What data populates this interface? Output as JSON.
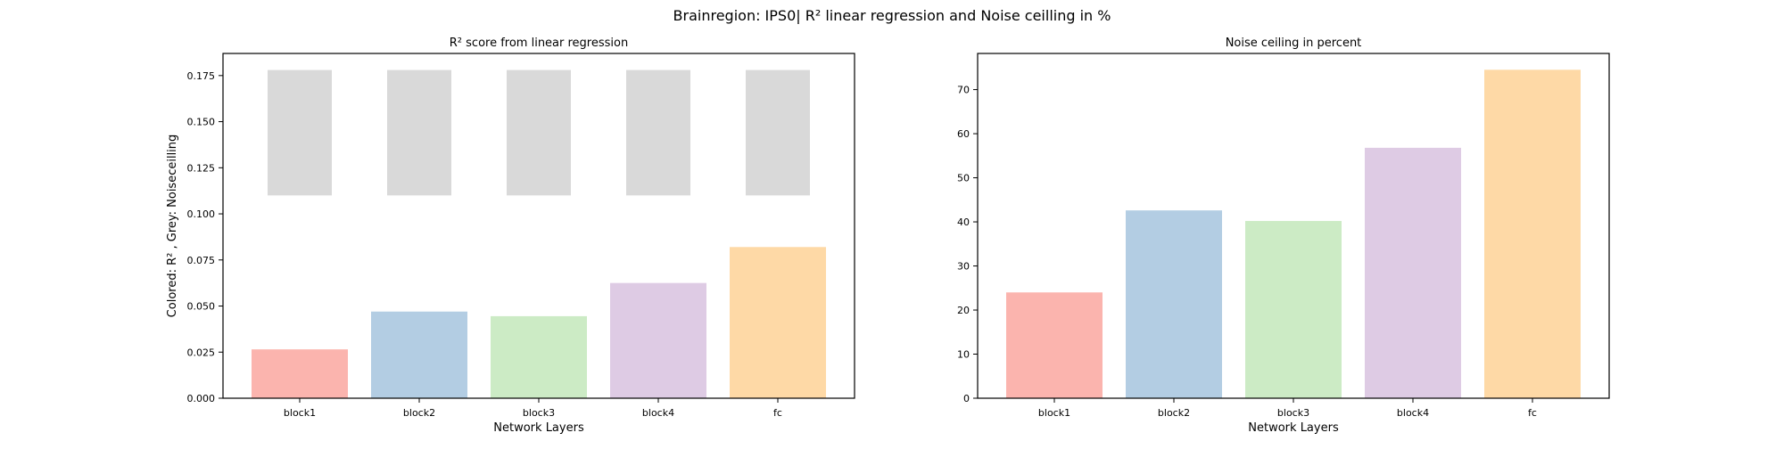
{
  "figure": {
    "title": "Brainregion: IPS0| R² linear regression and Noise ceilling in %"
  },
  "chart_data": [
    {
      "type": "bar",
      "title": "R² score from linear regression",
      "xlabel": "Network Layers",
      "ylabel": "Colored: R² , Grey: Noiseceilling",
      "categories": [
        "block1",
        "block2",
        "block3",
        "block4",
        "fc"
      ],
      "series": [
        {
          "values": [
            0.0265,
            0.047,
            0.0445,
            0.0625,
            0.082
          ]
        }
      ],
      "noise_ceiling_range": [
        [
          0.11,
          0.178
        ],
        [
          0.11,
          0.178
        ],
        [
          0.11,
          0.178
        ],
        [
          0.11,
          0.178
        ],
        [
          0.11,
          0.178
        ]
      ],
      "bar_colors": [
        "#fbb4ae",
        "#b3cde3",
        "#ccebc5",
        "#decbe4",
        "#fed9a6"
      ],
      "noise_ceiling_color": "#d9d9d9",
      "ylim": [
        0,
        0.187
      ],
      "yticks": [
        0.0,
        0.025,
        0.05,
        0.075,
        0.1,
        0.125,
        0.15,
        0.175
      ],
      "ytick_labels": [
        "0.000",
        "0.025",
        "0.050",
        "0.075",
        "0.100",
        "0.125",
        "0.150",
        "0.175"
      ],
      "grid": false,
      "legend": "none"
    },
    {
      "type": "bar",
      "title": "Noise ceiling in percent",
      "xlabel": "Network Layers",
      "ylabel": "",
      "categories": [
        "block1",
        "block2",
        "block3",
        "block4",
        "fc"
      ],
      "series": [
        {
          "values": [
            24.0,
            42.6,
            40.2,
            56.8,
            74.5
          ]
        }
      ],
      "bar_colors": [
        "#fbb4ae",
        "#b3cde3",
        "#ccebc5",
        "#decbe4",
        "#fed9a6"
      ],
      "ylim": [
        0,
        78.2
      ],
      "yticks": [
        0,
        10,
        20,
        30,
        40,
        50,
        60,
        70
      ],
      "ytick_labels": [
        "0",
        "10",
        "20",
        "30",
        "40",
        "50",
        "60",
        "70"
      ],
      "grid": false,
      "legend": "none"
    }
  ]
}
